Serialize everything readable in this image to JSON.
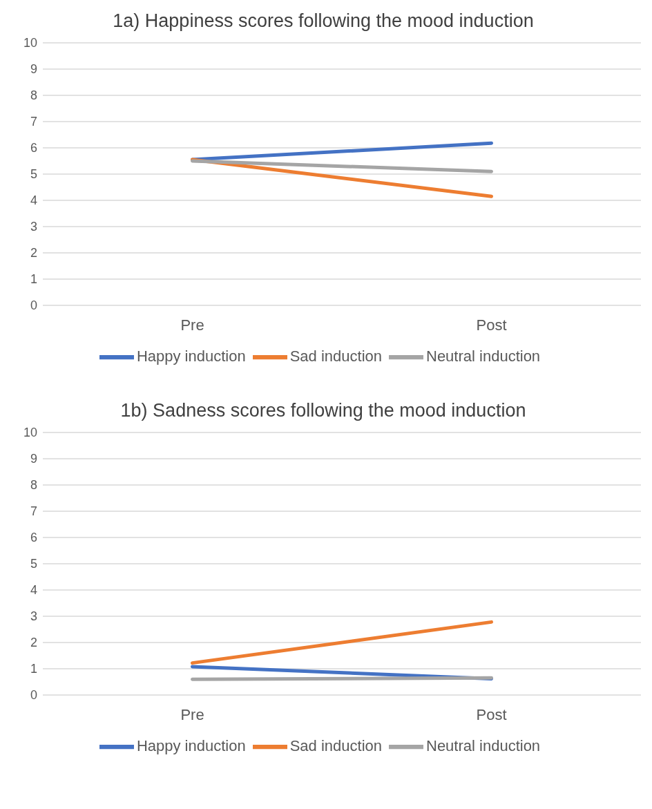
{
  "chart_data": [
    {
      "type": "line",
      "title": "1a) Happiness scores following the mood induction",
      "categories": [
        "Pre",
        "Post"
      ],
      "series": [
        {
          "name": "Happy induction",
          "color": "#4472c4",
          "values": [
            5.55,
            6.18
          ]
        },
        {
          "name": "Sad induction",
          "color": "#ed7d31",
          "values": [
            5.55,
            4.15
          ]
        },
        {
          "name": "Neutral induction",
          "color": "#a5a5a5",
          "values": [
            5.5,
            5.1
          ]
        }
      ],
      "ylim": [
        0,
        10
      ],
      "yticks": [
        0,
        1,
        2,
        3,
        4,
        5,
        6,
        7,
        8,
        9,
        10
      ],
      "grid": "y",
      "legend": "bottom",
      "marker": "none",
      "line_style": "solid"
    },
    {
      "type": "line",
      "title": "1b) Sadness scores following the mood induction",
      "categories": [
        "Pre",
        "Post"
      ],
      "series": [
        {
          "name": "Happy induction",
          "color": "#4472c4",
          "values": [
            1.08,
            0.62
          ]
        },
        {
          "name": "Sad induction",
          "color": "#ed7d31",
          "values": [
            1.22,
            2.78
          ]
        },
        {
          "name": "Neutral induction",
          "color": "#a5a5a5",
          "values": [
            0.6,
            0.65
          ]
        }
      ],
      "ylim": [
        0,
        10
      ],
      "yticks": [
        0,
        1,
        2,
        3,
        4,
        5,
        6,
        7,
        8,
        9,
        10
      ],
      "grid": "y",
      "legend": "bottom",
      "marker": "none",
      "line_style": "solid"
    }
  ]
}
